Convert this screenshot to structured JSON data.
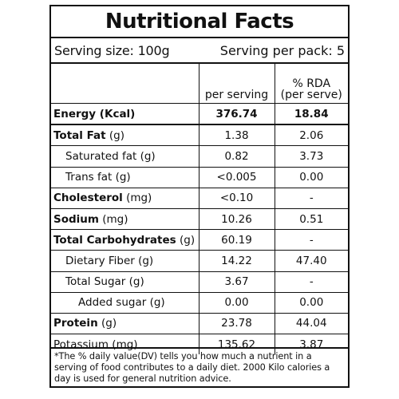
{
  "title": "Nutritional Facts",
  "serving": {
    "size": "Serving size: 100g",
    "per_pack": "Serving per pack: 5"
  },
  "columns": {
    "per_serving": "per serving",
    "rda_line1": "% RDA",
    "rda_line2": "(per serve)"
  },
  "rows": [
    {
      "name_bold": "Energy (Kcal)",
      "name_rest": "",
      "per_serving": "376.74",
      "rda": "18.84"
    },
    {
      "name_bold": "Total Fat",
      "name_rest": " (g)",
      "per_serving": "1.38",
      "rda": "2.06"
    },
    {
      "name_bold": "",
      "name_rest": "Saturated fat (g)",
      "per_serving": "0.82",
      "rda": "3.73"
    },
    {
      "name_bold": "",
      "name_rest": "Trans fat (g)",
      "per_serving": "<0.005",
      "rda": "0.00"
    },
    {
      "name_bold": "Cholesterol",
      "name_rest": " (mg)",
      "per_serving": "<0.10",
      "rda": "-"
    },
    {
      "name_bold": "Sodium",
      "name_rest": " (mg)",
      "per_serving": "10.26",
      "rda": "0.51"
    },
    {
      "name_bold": "Total Carbohydrates",
      "name_rest": " (g)",
      "per_serving": "60.19",
      "rda": "-"
    },
    {
      "name_bold": "",
      "name_rest": "Dietary Fiber (g)",
      "per_serving": "14.22",
      "rda": "47.40"
    },
    {
      "name_bold": "",
      "name_rest": "Total Sugar (g)",
      "per_serving": "3.67",
      "rda": "-"
    },
    {
      "name_bold": "",
      "name_rest": "Added sugar (g)",
      "per_serving": "0.00",
      "rda": "0.00"
    },
    {
      "name_bold": "Protein",
      "name_rest": " (g)",
      "per_serving": "23.78",
      "rda": "44.04"
    },
    {
      "name_bold": "",
      "name_rest": "Potassium (mg)",
      "per_serving": "135.62",
      "rda": "3.87"
    }
  ],
  "footnote": "*The % daily value(DV) tells you how much a nutrient in a serving of food contributes to a daily diet. 2000 Kilo calories a day is used for general nutrition advice."
}
